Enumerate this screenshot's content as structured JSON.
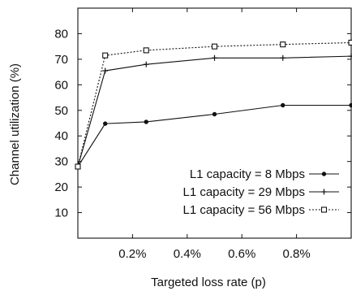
{
  "chart_data": {
    "type": "line",
    "title": "",
    "xlabel": "Targeted loss rate  (p)",
    "ylabel": "Channel utilization (%)",
    "xlim": [
      0,
      1
    ],
    "ylim": [
      0,
      90
    ],
    "x_ticks": [
      0.2,
      0.4,
      0.6,
      0.8
    ],
    "x_tick_labels": [
      "0.2%",
      "0.4%",
      "0.6%",
      "0.8%"
    ],
    "y_ticks": [
      10,
      20,
      30,
      40,
      50,
      60,
      70,
      80
    ],
    "y_tick_labels": [
      "10",
      "20",
      "30",
      "40",
      "50",
      "60",
      "70",
      "80"
    ],
    "grid": false,
    "legend_position": "bottom-right",
    "series": [
      {
        "name": "L1 capacity =   8 Mbps",
        "marker": "dot",
        "line_style": "solid",
        "x": [
          0,
          0.1,
          0.25,
          0.5,
          0.75,
          1.0
        ],
        "y": [
          28,
          44.8,
          45.5,
          48.5,
          52,
          52
        ]
      },
      {
        "name": "L1 capacity = 29 Mbps",
        "marker": "plus",
        "line_style": "solid",
        "x": [
          0,
          0.1,
          0.25,
          0.5,
          0.75,
          1.0
        ],
        "y": [
          28,
          65.5,
          68,
          70.5,
          70.5,
          71.2
        ]
      },
      {
        "name": "L1 capacity = 56 Mbps",
        "marker": "square",
        "line_style": "dotted",
        "x": [
          0,
          0.1,
          0.25,
          0.5,
          0.75,
          1.0
        ],
        "y": [
          28,
          71.5,
          73.5,
          75,
          75.8,
          76.5
        ]
      }
    ]
  }
}
